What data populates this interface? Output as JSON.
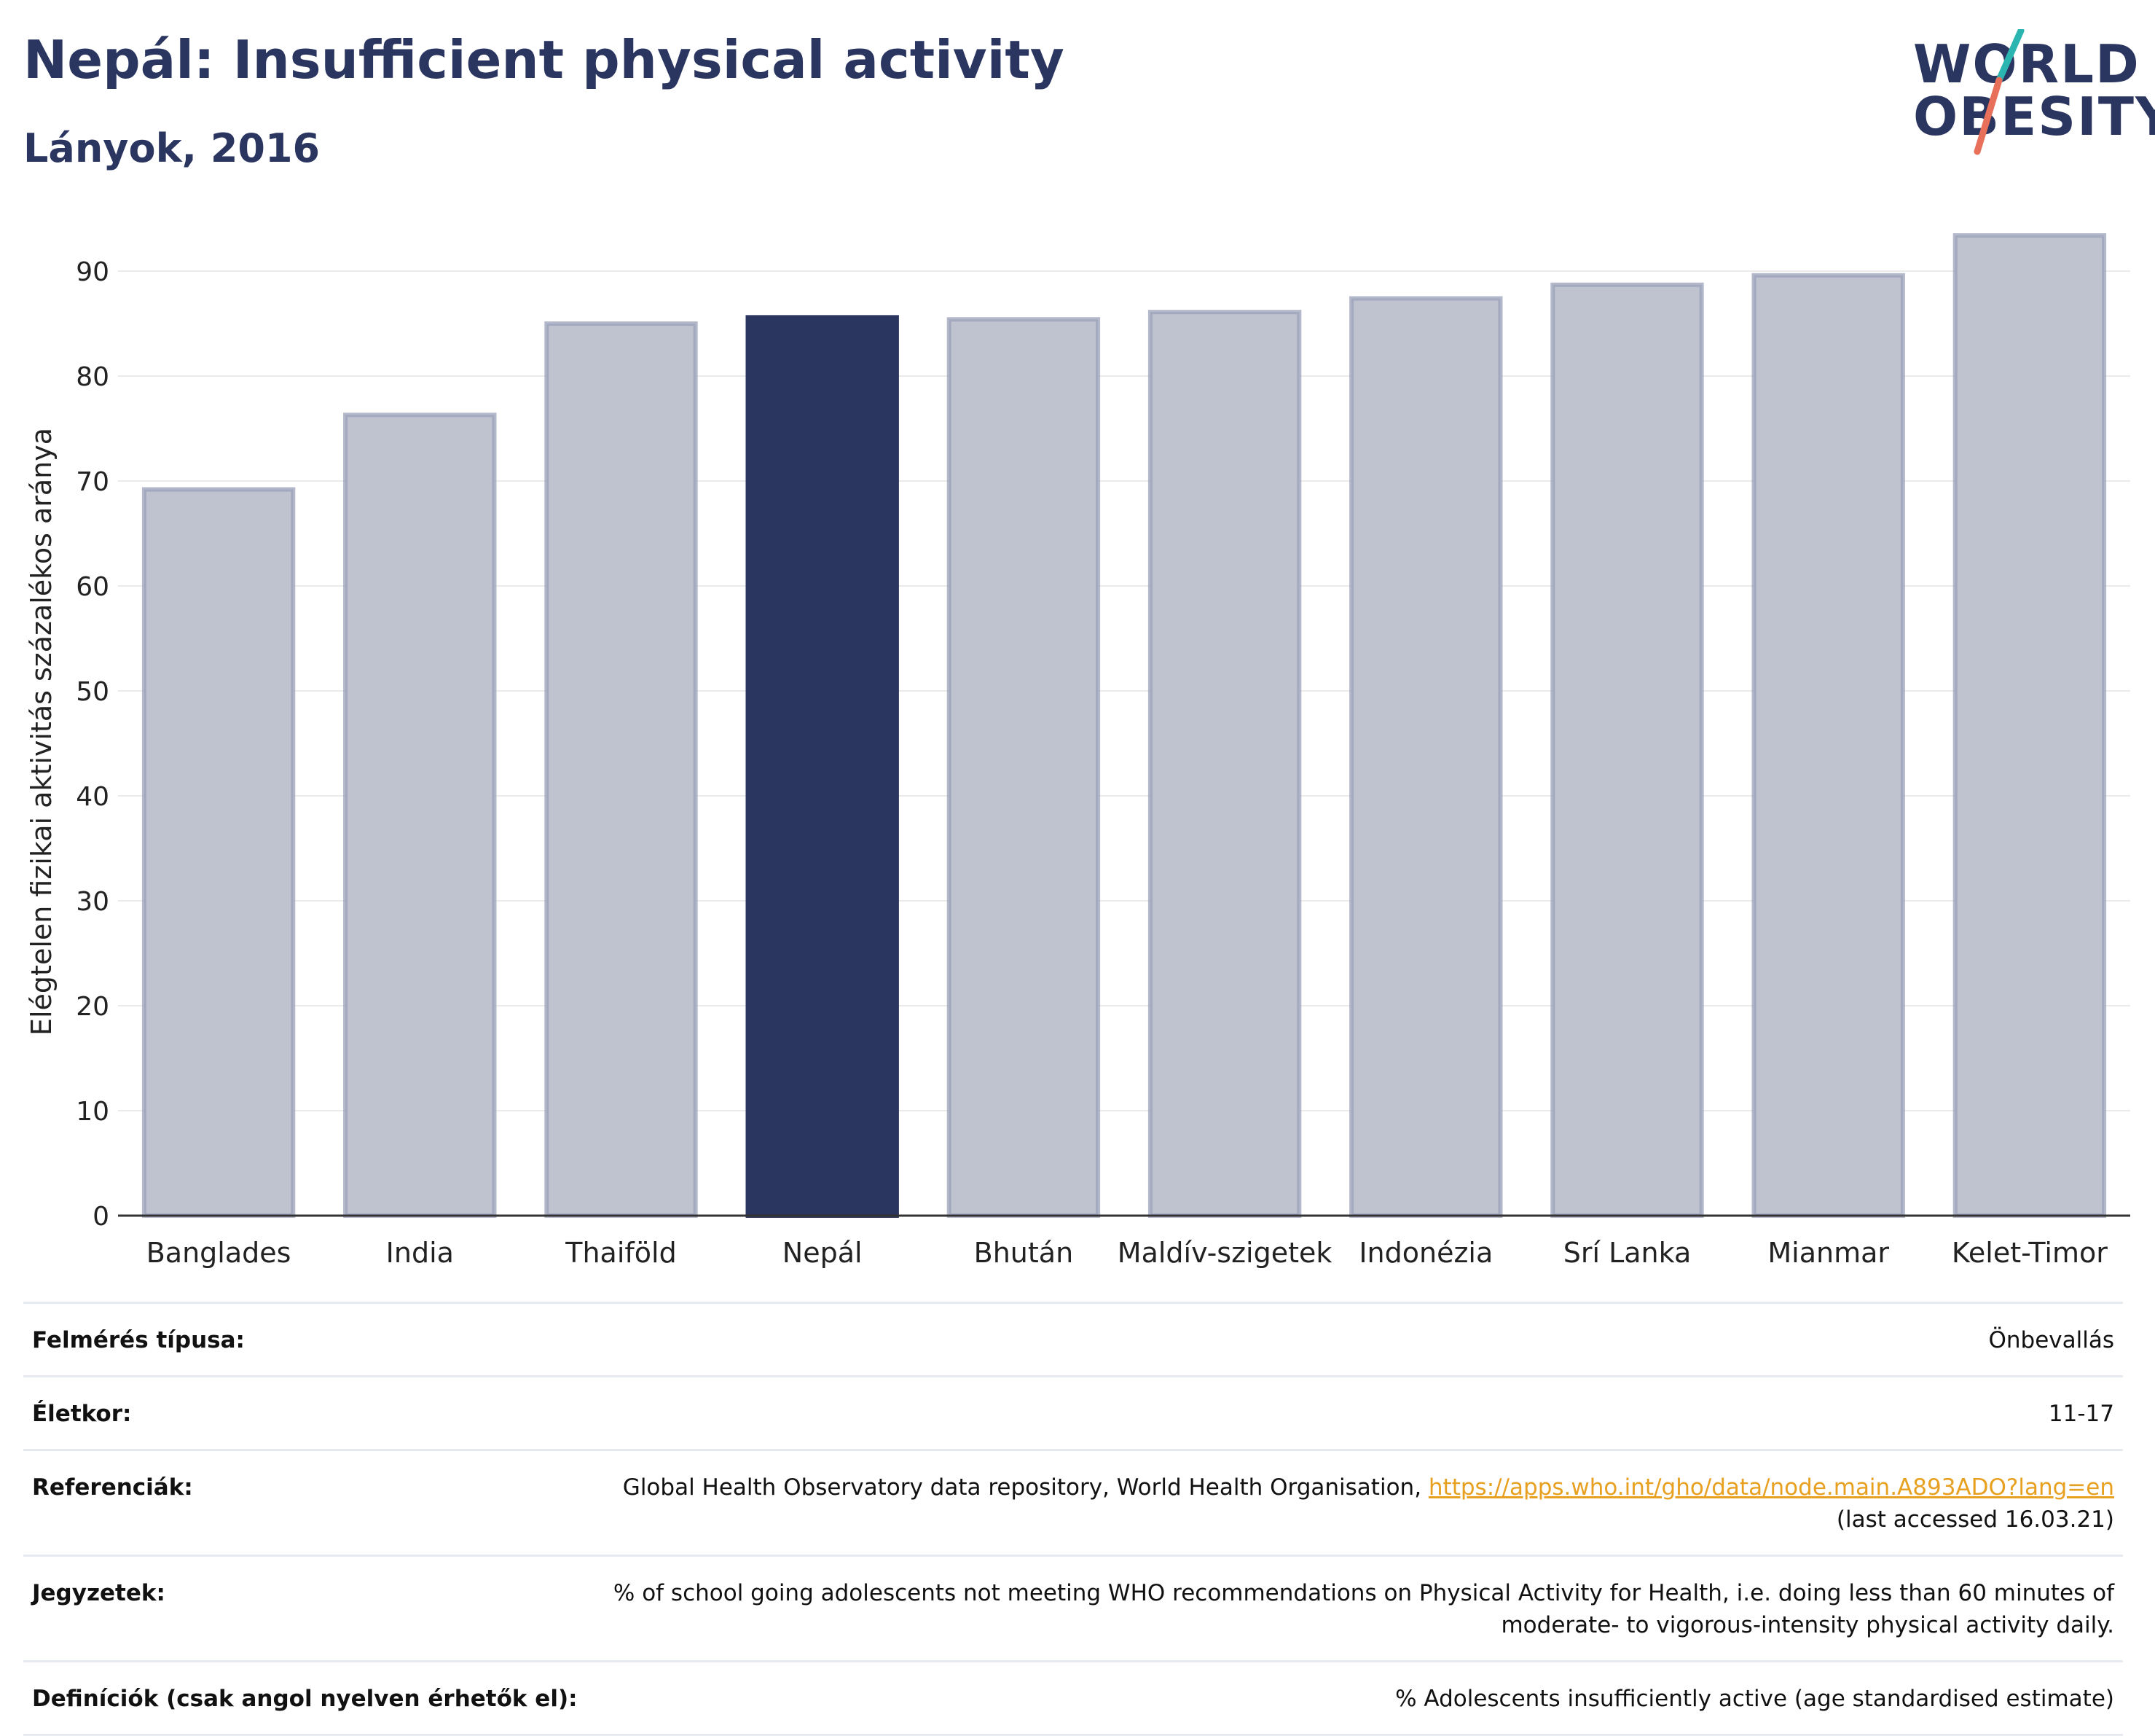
{
  "header": {
    "title": "Nepál: Insufficient physical activity",
    "subtitle": "Lányok, 2016"
  },
  "logo": {
    "line1": "WORLD",
    "line2": "OBESITY",
    "accent_colors": [
      "#2bb5b0",
      "#e8705a"
    ]
  },
  "chart_data": {
    "type": "bar",
    "categories": [
      "Banglades",
      "India",
      "Thaiföld",
      "Nepál",
      "Bhután",
      "Maldív-szigetek",
      "Indonézia",
      "Srí Lanka",
      "Mianmar",
      "Kelet-Timor"
    ],
    "values": [
      69.2,
      76.3,
      85.0,
      85.6,
      85.4,
      86.1,
      87.4,
      88.7,
      89.6,
      93.4
    ],
    "highlight": "Nepál",
    "title": "",
    "xlabel": "",
    "ylabel": "Elégtelen fizikai aktivitás százalékos aránya",
    "ylim": [
      0,
      95
    ],
    "yticks": [
      0,
      10,
      20,
      30,
      40,
      50,
      60,
      70,
      80,
      90
    ],
    "grid": true,
    "colors": {
      "bar": "#bfc2cf",
      "bar_edge": "#9aa0b8",
      "highlight": "#2a3560"
    }
  },
  "info": [
    {
      "label": "Felmérés típusa:",
      "value": "Önbevallás"
    },
    {
      "label": "Életkor:",
      "value": "11-17"
    },
    {
      "label": "Referenciák:",
      "value": "Global Health Observatory data repository, World Health Organisation, ",
      "link": "https://apps.who.int/gho/data/node.main.A893ADO?lang=en",
      "value2": "(last accessed 16.03.21)"
    },
    {
      "label": "Jegyzetek:",
      "value": "% of school going adolescents not meeting WHO recommendations on Physical Activity for Health, i.e. doing less than 60 minutes of moderate- to vigorous-intensity physical activity daily."
    },
    {
      "label": "Definíciók (csak angol nyelven érhetők el):",
      "value": "% Adolescents insufficiently active (age standardised estimate)"
    }
  ]
}
